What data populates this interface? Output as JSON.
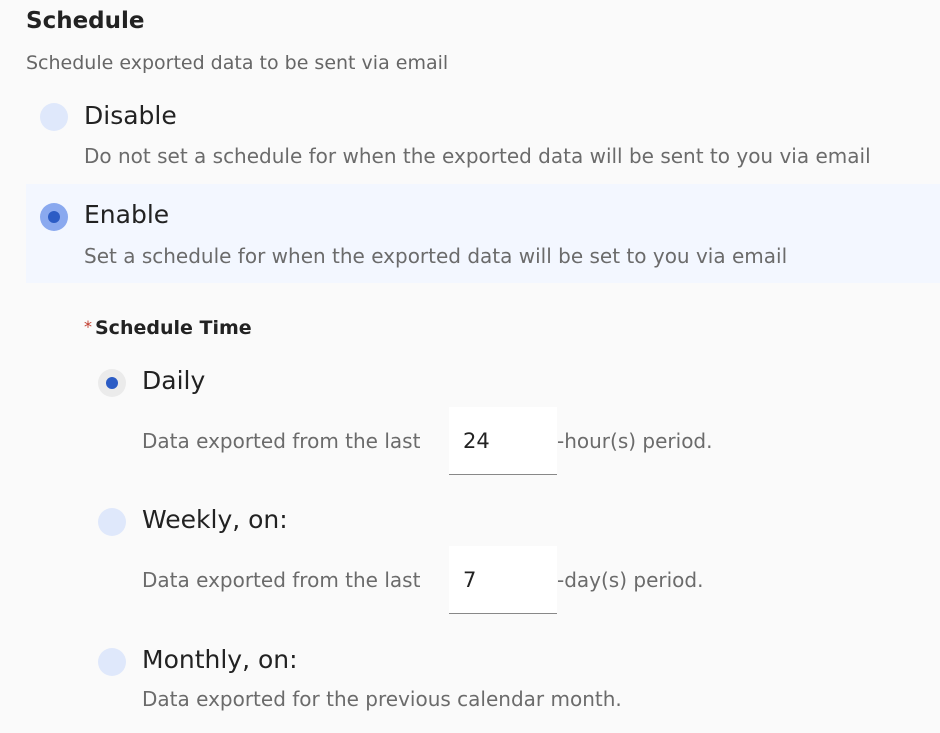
{
  "title": "Schedule",
  "subtitle": "Schedule exported data to be sent via email",
  "options": [
    {
      "label": "Disable",
      "description": "Do not set a schedule for when the exported data will be sent to you via email",
      "selected": false
    },
    {
      "label": "Enable",
      "description": "Set a schedule for when the exported data will be set to you via email",
      "selected": true
    }
  ],
  "schedule_time": {
    "required_mark": "*",
    "label": "Schedule Time",
    "daily": {
      "label": "Daily",
      "prefix": "Data exported from the last",
      "value": "24",
      "suffix": "-hour(s) period.",
      "selected": true
    },
    "weekly": {
      "label": "Weekly, on:",
      "prefix": "Data exported from the last",
      "value": "7",
      "suffix": "-day(s) period.",
      "selected": false
    },
    "monthly": {
      "label": "Monthly, on:",
      "description": "Data exported for the previous calendar month.",
      "selected": false
    }
  },
  "colors": {
    "accent": "#2c5cc5",
    "highlight": "#f3f7ff"
  }
}
